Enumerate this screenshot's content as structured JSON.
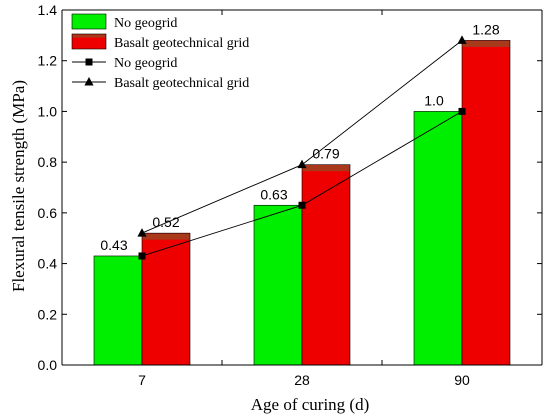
{
  "chart_data": {
    "type": "bar",
    "xlabel": "Age of curing (d)",
    "ylabel": "Flexural tensile strength (MPa)",
    "categories": [
      "7",
      "28",
      "90"
    ],
    "ylim": [
      0.0,
      1.4
    ],
    "yticks": [
      "0.0",
      "0.2",
      "0.4",
      "0.6",
      "0.8",
      "1.0",
      "1.2",
      "1.4"
    ],
    "grid": false,
    "legend_position": "top-left",
    "series": [
      {
        "name": "No geogrid",
        "kind": "bar",
        "color": "#00ee00",
        "values": [
          0.43,
          0.63,
          1.0
        ],
        "labels": [
          "0.43",
          "0.63",
          "1.0"
        ]
      },
      {
        "name": "Basalt geotechnical grid",
        "kind": "bar",
        "color": "#ee0000",
        "cap_color": "#a83a1c",
        "values": [
          0.52,
          0.79,
          1.28
        ],
        "labels": [
          "0.52",
          "0.79",
          "1.28"
        ]
      },
      {
        "name": "No geogrid",
        "kind": "line",
        "marker": "square",
        "color": "#000000",
        "values": [
          0.43,
          0.63,
          1.0
        ]
      },
      {
        "name": "Basalt geotechnical grid",
        "kind": "line",
        "marker": "triangle",
        "color": "#000000",
        "values": [
          0.52,
          0.79,
          1.28
        ]
      }
    ]
  }
}
